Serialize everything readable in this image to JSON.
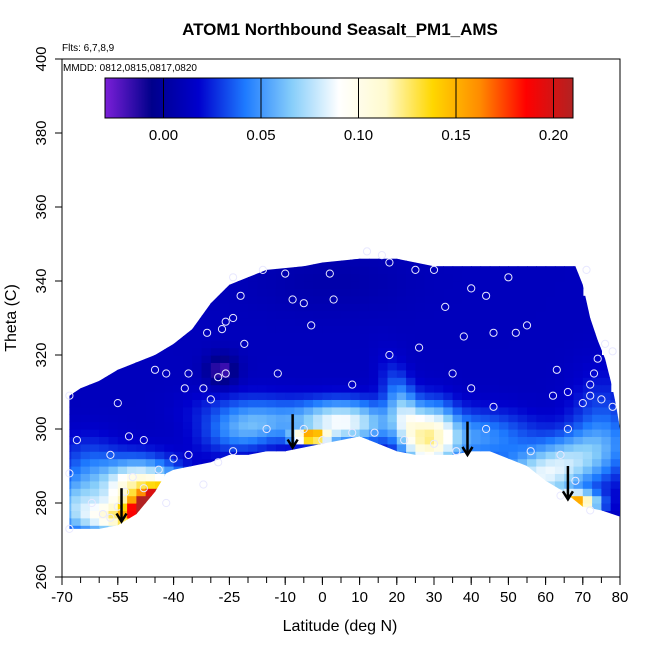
{
  "chart_data": {
    "type": "heatmap",
    "title": "ATOM1 Northbound Seasalt_PM1_AMS",
    "notes": {
      "flights": "Flts: 6,7,8,9",
      "dates": "MMDD: 0812,0815,0817,0820"
    },
    "xlabel": "Latitude (deg N)",
    "ylabel": "Theta (C)",
    "xlim": [
      -70,
      80
    ],
    "ylim": [
      260,
      400
    ],
    "x_ticks": [
      -70,
      -55,
      -40,
      -25,
      -10,
      0,
      10,
      20,
      30,
      40,
      50,
      60,
      70,
      80
    ],
    "x_tick_labels": [
      "-70",
      "-55",
      "-40",
      "-25",
      "-10",
      "0",
      "10",
      "20",
      "30",
      "40",
      "50",
      "60",
      "70",
      "80"
    ],
    "y_ticks": [
      260,
      280,
      300,
      320,
      340,
      360,
      380,
      400
    ],
    "y_tick_labels": [
      "260",
      "280",
      "300",
      "320",
      "340",
      "360",
      "380",
      "400"
    ],
    "colorbar": {
      "range": [
        -0.03,
        0.21
      ],
      "ticks": [
        0.0,
        0.05,
        0.1,
        0.15,
        0.2
      ],
      "tick_labels": [
        "0.00",
        "0.05",
        "0.10",
        "0.15",
        "0.20"
      ],
      "colors": [
        "#7b1fd8",
        "#00008b",
        "#0000cd",
        "#1e7bff",
        "#87cefa",
        "#ffffff",
        "#fffacd",
        "#ffd700",
        "#ff8c00",
        "#ff0000",
        "#b22222"
      ]
    },
    "field_domain": {
      "top": [
        [
          -68,
          309
        ],
        [
          -65,
          311
        ],
        [
          -60,
          313
        ],
        [
          -55,
          316
        ],
        [
          -50,
          318
        ],
        [
          -45,
          320
        ],
        [
          -40,
          323
        ],
        [
          -35,
          327
        ],
        [
          -30,
          334
        ],
        [
          -25,
          339
        ],
        [
          -20,
          341
        ],
        [
          -15,
          343
        ],
        [
          -5,
          344
        ],
        [
          0,
          345
        ],
        [
          10,
          346
        ],
        [
          20,
          346
        ],
        [
          30,
          344
        ],
        [
          40,
          344
        ],
        [
          50,
          344
        ],
        [
          60,
          344
        ],
        [
          68,
          344
        ],
        [
          70,
          339
        ],
        [
          72,
          330
        ],
        [
          74,
          324
        ],
        [
          76,
          319
        ],
        [
          78,
          311
        ],
        [
          79,
          306
        ],
        [
          80,
          300
        ],
        [
          81,
          280
        ],
        [
          81,
          276
        ]
      ],
      "bottom": [
        [
          -68,
          273
        ],
        [
          -65,
          273
        ],
        [
          -60,
          273
        ],
        [
          -55,
          274
        ],
        [
          -50,
          277
        ],
        [
          -45,
          283
        ],
        [
          -42,
          288
        ],
        [
          -40,
          289
        ],
        [
          -35,
          290
        ],
        [
          -30,
          291
        ],
        [
          -25,
          293
        ],
        [
          -20,
          293
        ],
        [
          -15,
          294
        ],
        [
          -10,
          294
        ],
        [
          -5,
          295
        ],
        [
          0,
          296
        ],
        [
          5,
          297
        ],
        [
          10,
          298
        ],
        [
          15,
          296
        ],
        [
          20,
          294
        ],
        [
          25,
          293
        ],
        [
          30,
          293
        ],
        [
          35,
          293
        ],
        [
          40,
          294
        ],
        [
          45,
          294
        ],
        [
          50,
          292
        ],
        [
          55,
          290
        ],
        [
          60,
          286
        ],
        [
          65,
          283
        ],
        [
          70,
          279
        ],
        [
          75,
          278
        ],
        [
          81,
          276
        ]
      ]
    },
    "field_features": [
      {
        "x": -45,
        "y": 280,
        "value": 0.21,
        "sx": 2.5,
        "sy": 5.0,
        "rot": -1.1
      },
      {
        "x": -49,
        "y": 284,
        "value": 0.12,
        "sx": 7,
        "sy": 5,
        "rot": 0
      },
      {
        "x": -55,
        "y": 276,
        "value": 0.09,
        "sx": 6,
        "sy": 3,
        "rot": 0
      },
      {
        "x": -66,
        "y": 279,
        "value": 0.06,
        "sx": 5,
        "sy": 5,
        "rot": 0
      },
      {
        "x": -63,
        "y": 290,
        "value": 0.035,
        "sx": 6,
        "sy": 6,
        "rot": 0
      },
      {
        "x": -20,
        "y": 300,
        "value": 0.05,
        "sx": 8,
        "sy": 4,
        "rot": 0.2
      },
      {
        "x": -27,
        "y": 316,
        "value": -0.02,
        "sx": 3,
        "sy": 3,
        "rot": 0
      },
      {
        "x": -22,
        "y": 305,
        "value": 0.03,
        "sx": 10,
        "sy": 4,
        "rot": 0
      },
      {
        "x": -3,
        "y": 298,
        "value": 0.18,
        "sx": 3,
        "sy": 1.0,
        "rot": 0
      },
      {
        "x": 5,
        "y": 302,
        "value": 0.09,
        "sx": 9,
        "sy": 4,
        "rot": 0
      },
      {
        "x": 23,
        "y": 302,
        "value": 0.065,
        "sx": 3,
        "sy": 9,
        "rot": 0.3
      },
      {
        "x": 30,
        "y": 298,
        "value": 0.085,
        "sx": 4,
        "sy": 6,
        "rot": 0
      },
      {
        "x": 40,
        "y": 298,
        "value": 0.05,
        "sx": 12,
        "sy": 5,
        "rot": 0
      },
      {
        "x": 60,
        "y": 288,
        "value": 0.085,
        "sx": 12,
        "sy": 5,
        "rot": 0.4
      },
      {
        "x": 68,
        "y": 280,
        "value": 0.16,
        "sx": 4,
        "sy": 2,
        "rot": 0
      },
      {
        "x": 75,
        "y": 300,
        "value": 0.035,
        "sx": 6,
        "sy": 10,
        "rot": 0
      },
      {
        "x": 2,
        "y": 340,
        "value": 0.005,
        "sx": 15,
        "sy": 6,
        "rot": 0
      }
    ],
    "field_base_value": 0.012,
    "sample_points": [
      [
        -68,
        309
      ],
      [
        -66,
        297
      ],
      [
        -68,
        288
      ],
      [
        -68,
        273
      ],
      [
        -59,
        277
      ],
      [
        -62,
        280
      ],
      [
        -52,
        298
      ],
      [
        -55,
        307
      ],
      [
        -51,
        287
      ],
      [
        -55,
        279
      ],
      [
        -57,
        276
      ],
      [
        -48,
        297
      ],
      [
        -45,
        316
      ],
      [
        -42,
        315
      ],
      [
        -37,
        311
      ],
      [
        -36,
        315
      ],
      [
        -32,
        311
      ],
      [
        -30,
        308
      ],
      [
        -31,
        326
      ],
      [
        -27,
        327
      ],
      [
        -26,
        329
      ],
      [
        -24,
        330
      ],
      [
        -21,
        323
      ],
      [
        -26,
        315
      ],
      [
        -28,
        314
      ],
      [
        -12,
        315
      ],
      [
        -24,
        294
      ],
      [
        -28,
        291
      ],
      [
        -32,
        285
      ],
      [
        -42,
        280
      ],
      [
        -16,
        343
      ],
      [
        -10,
        342
      ],
      [
        -5,
        334
      ],
      [
        -3,
        328
      ],
      [
        3,
        335
      ],
      [
        2,
        342
      ],
      [
        12,
        348
      ],
      [
        18,
        345
      ],
      [
        25,
        343
      ],
      [
        30,
        343
      ],
      [
        33,
        333
      ],
      [
        40,
        338
      ],
      [
        44,
        336
      ],
      [
        38,
        325
      ],
      [
        46,
        326
      ],
      [
        52,
        326
      ],
      [
        55,
        328
      ],
      [
        63,
        316
      ],
      [
        66,
        310
      ],
      [
        70,
        307
      ],
      [
        72,
        312
      ],
      [
        73,
        315
      ],
      [
        74,
        319
      ],
      [
        76,
        323
      ],
      [
        78,
        321
      ],
      [
        78,
        306
      ],
      [
        75,
        308
      ],
      [
        72,
        309
      ],
      [
        66,
        300
      ],
      [
        64,
        293
      ],
      [
        68,
        286
      ],
      [
        72,
        278
      ],
      [
        64,
        282
      ],
      [
        56,
        294
      ],
      [
        46,
        306
      ],
      [
        40,
        311
      ],
      [
        35,
        315
      ],
      [
        26,
        322
      ],
      [
        18,
        320
      ],
      [
        8,
        312
      ],
      [
        14,
        299
      ],
      [
        22,
        297
      ],
      [
        30,
        296
      ],
      [
        36,
        294
      ],
      [
        44,
        300
      ],
      [
        -5,
        300
      ],
      [
        0,
        297
      ],
      [
        8,
        299
      ],
      [
        -15,
        300
      ],
      [
        -40,
        292
      ],
      [
        62,
        309
      ],
      [
        -36,
        293
      ],
      [
        -44,
        289
      ],
      [
        -48,
        284
      ],
      [
        -53,
        283
      ],
      [
        -57,
        293
      ],
      [
        -8,
        335
      ],
      [
        16,
        347
      ],
      [
        50,
        341
      ],
      [
        71,
        343
      ],
      [
        -24,
        341
      ],
      [
        -22,
        336
      ]
    ],
    "arrows": [
      {
        "x": -54,
        "y_tail": 284,
        "y_head": 275
      },
      {
        "x": -8,
        "y_tail": 304,
        "y_head": 295
      },
      {
        "x": 39,
        "y_tail": 302,
        "y_head": 293
      },
      {
        "x": 66,
        "y_tail": 290,
        "y_head": 281
      }
    ]
  }
}
